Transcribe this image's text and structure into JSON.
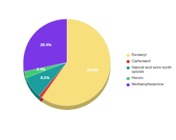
{
  "chart_data": {
    "type": "pie",
    "categories": [
      "Fentanyl",
      "Carfentanil",
      "Natural and semi-synth opioids",
      "Heroin",
      "Methamphetamine"
    ],
    "values": [
      59.8,
      1.2,
      8.2,
      2.4,
      28.4
    ],
    "value_labels": [
      "59.8%",
      null,
      "8.2%",
      "2.4%",
      "28.4%"
    ],
    "colors": [
      "#f7df7b",
      "#e0312f",
      "#1a9e9e",
      "#3ccf6b",
      "#7b36e6"
    ],
    "data_labels": true,
    "legend": "right"
  }
}
